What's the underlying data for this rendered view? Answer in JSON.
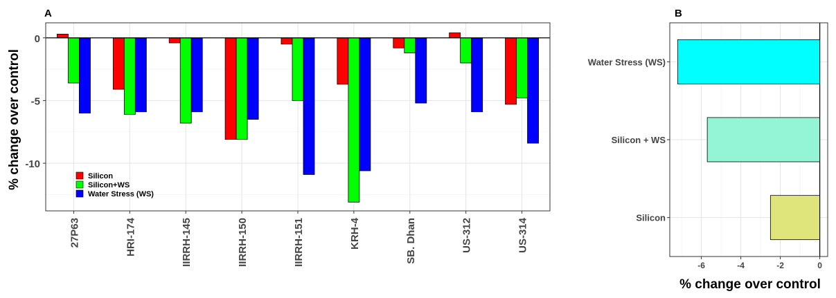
{
  "panels": [
    {
      "label": "A"
    },
    {
      "label": "B"
    }
  ],
  "chart_data": [
    {
      "type": "bar",
      "panel": "A",
      "ylabel": "% change over control",
      "xlabel": "",
      "categories": [
        "27P63",
        "HRI-174",
        "IIRRH-145",
        "IIRRH-150",
        "IIRRH-151",
        "KRH-4",
        "SB. Dhan",
        "US-312",
        "US-314"
      ],
      "series": [
        {
          "name": "Silicon",
          "color": "#ff0000",
          "values": [
            0.3,
            -4.1,
            -0.4,
            -8.1,
            -0.5,
            -3.7,
            -0.8,
            0.4,
            -5.3
          ]
        },
        {
          "name": "Silicon+WS",
          "color": "#00ff00",
          "values": [
            -3.6,
            -6.1,
            -6.8,
            -8.1,
            -5.0,
            -13.1,
            -1.2,
            -2.0,
            -4.8
          ]
        },
        {
          "name": "Water Stress (WS)",
          "color": "#0000ff",
          "values": [
            -6.0,
            -5.9,
            -5.9,
            -6.5,
            -10.9,
            -10.6,
            -5.2,
            -5.9,
            -8.4
          ]
        }
      ],
      "ylim": [
        -13.8,
        1.2
      ],
      "yticks": [
        0,
        -5,
        -10
      ],
      "ytick_labels": [
        "0",
        "-5",
        "-10"
      ],
      "grid": true,
      "legend_position": "bottom-left"
    },
    {
      "type": "bar",
      "orientation": "horizontal",
      "panel": "B",
      "xlabel": "% change over control",
      "ylabel": "",
      "categories": [
        "Water Stress (WS)",
        "Silicon + WS",
        "Silicon"
      ],
      "values": [
        -7.2,
        -5.7,
        -2.5
      ],
      "colors": [
        "#00ffff",
        "#93f5d6",
        "#dfe57a"
      ],
      "xlim": [
        -7.6,
        0.4
      ],
      "xticks": [
        -6,
        -4,
        -2,
        0
      ],
      "xtick_labels": [
        "-6",
        "-4",
        "-2",
        "0"
      ],
      "grid": true
    }
  ]
}
